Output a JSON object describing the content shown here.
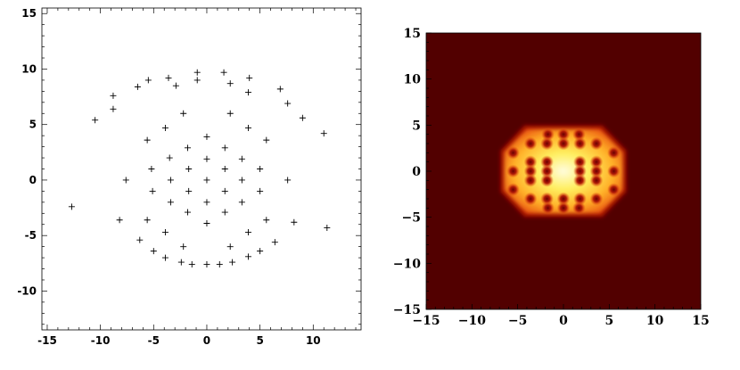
{
  "chart_data": [
    {
      "type": "scatter",
      "title": "",
      "xlabel": "",
      "ylabel": "",
      "xlim": [
        -15.5,
        14.5
      ],
      "ylim": [
        -13.5,
        15.5
      ],
      "x_ticks": [
        -15,
        -10,
        -5,
        0,
        5,
        10
      ],
      "y_ticks": [
        -10,
        -5,
        0,
        5,
        10,
        15
      ],
      "grid": false,
      "marker": "+",
      "points": [
        [
          -0.9,
          9.7
        ],
        [
          1.6,
          9.7
        ],
        [
          -3.6,
          9.2
        ],
        [
          4.0,
          9.2
        ],
        [
          -5.5,
          9.0
        ],
        [
          -0.9,
          9.0
        ],
        [
          2.2,
          8.7
        ],
        [
          -2.9,
          8.5
        ],
        [
          -6.5,
          8.4
        ],
        [
          6.9,
          8.2
        ],
        [
          3.9,
          7.9
        ],
        [
          -8.8,
          7.6
        ],
        [
          -8.8,
          6.4
        ],
        [
          7.6,
          6.9
        ],
        [
          -10.5,
          5.4
        ],
        [
          -2.2,
          6.0
        ],
        [
          2.2,
          6.0
        ],
        [
          9.0,
          5.6
        ],
        [
          -3.9,
          4.7
        ],
        [
          0.0,
          3.9
        ],
        [
          3.9,
          4.7
        ],
        [
          11.0,
          4.2
        ],
        [
          -5.6,
          3.6
        ],
        [
          5.6,
          3.6
        ],
        [
          -1.8,
          2.9
        ],
        [
          1.7,
          2.9
        ],
        [
          -3.5,
          2.0
        ],
        [
          0.0,
          1.9
        ],
        [
          3.3,
          1.9
        ],
        [
          -5.2,
          1.0
        ],
        [
          -1.7,
          1.0
        ],
        [
          1.7,
          1.0
        ],
        [
          5.0,
          1.0
        ],
        [
          -7.6,
          0.0
        ],
        [
          -3.4,
          0.0
        ],
        [
          0.0,
          0.0
        ],
        [
          3.3,
          0.0
        ],
        [
          7.6,
          0.0
        ],
        [
          -5.1,
          -1.0
        ],
        [
          -1.7,
          -1.0
        ],
        [
          1.7,
          -1.0
        ],
        [
          5.0,
          -1.0
        ],
        [
          -3.4,
          -2.0
        ],
        [
          0.0,
          -2.0
        ],
        [
          3.3,
          -2.0
        ],
        [
          -1.8,
          -2.9
        ],
        [
          1.7,
          -2.9
        ],
        [
          -12.7,
          -2.4
        ],
        [
          -8.2,
          -3.6
        ],
        [
          -5.6,
          -3.6
        ],
        [
          0.0,
          -3.9
        ],
        [
          5.6,
          -3.6
        ],
        [
          8.2,
          -3.8
        ],
        [
          -3.9,
          -4.7
        ],
        [
          3.9,
          -4.7
        ],
        [
          11.3,
          -4.3
        ],
        [
          -6.3,
          -5.4
        ],
        [
          6.4,
          -5.6
        ],
        [
          -2.2,
          -6.0
        ],
        [
          2.2,
          -6.0
        ],
        [
          -5.0,
          -6.4
        ],
        [
          5.0,
          -6.4
        ],
        [
          -3.9,
          -7.0
        ],
        [
          3.9,
          -6.9
        ],
        [
          -2.4,
          -7.4
        ],
        [
          2.4,
          -7.4
        ],
        [
          -1.4,
          -7.6
        ],
        [
          0.0,
          -7.6
        ],
        [
          1.2,
          -7.6
        ]
      ]
    },
    {
      "type": "heatmap",
      "title": "",
      "xlabel": "",
      "ylabel": "",
      "xlim": [
        -15,
        15
      ],
      "ylim": [
        -15,
        15
      ],
      "x_ticks": [
        -15,
        -10,
        -5,
        0,
        5,
        10,
        15
      ],
      "y_ticks": [
        -15,
        -10,
        -5,
        0,
        5,
        10,
        15
      ],
      "tick_labels": [
        "−15",
        "−10",
        "−5",
        "0",
        "5",
        "10",
        "15"
      ],
      "colors": {
        "background": "#520000",
        "low": "#9e0a05",
        "mid": "#e84a0e",
        "high": "#fff060",
        "peak": "#fffce0"
      },
      "cluster_shape": "hexagonal",
      "cluster_half_width": 6.5,
      "cluster_half_height": 4.6,
      "dark_spots": [
        [
          -1.7,
          4.0
        ],
        [
          0.0,
          4.0
        ],
        [
          1.7,
          4.0
        ],
        [
          -3.6,
          3.0
        ],
        [
          -1.8,
          3.0
        ],
        [
          0.0,
          3.0
        ],
        [
          1.8,
          3.0
        ],
        [
          3.6,
          3.0
        ],
        [
          -5.5,
          2.0
        ],
        [
          5.5,
          2.0
        ],
        [
          -3.6,
          1.0
        ],
        [
          -1.8,
          1.0
        ],
        [
          1.8,
          1.0
        ],
        [
          3.6,
          1.0
        ],
        [
          -5.5,
          0.0
        ],
        [
          -3.6,
          0.0
        ],
        [
          -1.8,
          0.0
        ],
        [
          1.8,
          0.0
        ],
        [
          3.6,
          0.0
        ],
        [
          5.5,
          0.0
        ],
        [
          -3.6,
          -1.0
        ],
        [
          -1.8,
          -1.0
        ],
        [
          1.8,
          -1.0
        ],
        [
          3.6,
          -1.0
        ],
        [
          -5.5,
          -2.0
        ],
        [
          5.5,
          -2.0
        ],
        [
          -3.6,
          -3.0
        ],
        [
          -1.8,
          -3.0
        ],
        [
          0.0,
          -3.0
        ],
        [
          1.8,
          -3.0
        ],
        [
          3.6,
          -3.0
        ],
        [
          -1.7,
          -4.0
        ],
        [
          0.0,
          -4.0
        ],
        [
          1.7,
          -4.0
        ]
      ]
    }
  ]
}
